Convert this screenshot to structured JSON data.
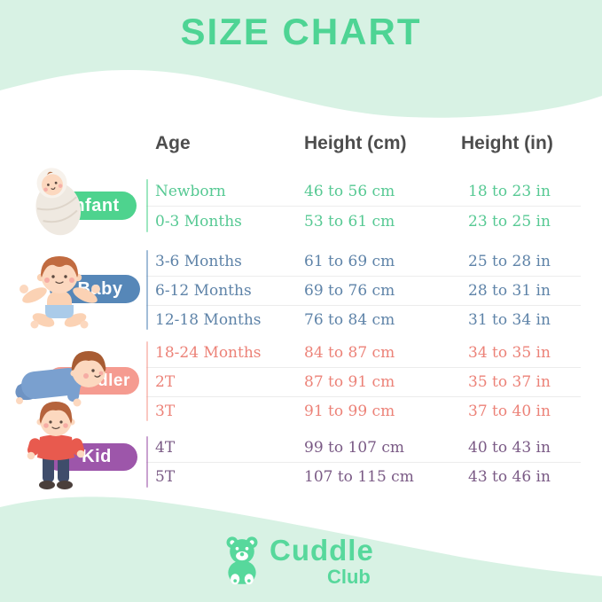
{
  "title": "SIZE CHART",
  "columns": {
    "age": "Age",
    "height_cm": "Height (cm)",
    "height_in": "Height (in)"
  },
  "groups": [
    {
      "label": "Infant",
      "color": "#4ed38e",
      "text_color": "#56c993",
      "illustration": "swaddled-baby",
      "rows": [
        {
          "age": "Newborn",
          "cm": "46 to 56 cm",
          "in": "18 to 23 in"
        },
        {
          "age": "0-3 Months",
          "cm": "53 to 61 cm",
          "in": "23 to 25 in"
        }
      ]
    },
    {
      "label": "Baby",
      "color": "#5687b8",
      "text_color": "#5e83a8",
      "illustration": "sitting-baby-arms-out",
      "rows": [
        {
          "age": "3-6 Months",
          "cm": "61 to 69 cm",
          "in": "25 to 28 in"
        },
        {
          "age": "6-12 Months",
          "cm": "69 to 76 cm",
          "in": "28 to 31 in"
        },
        {
          "age": "12-18 Months",
          "cm": "76 to 84 cm",
          "in": "31 to 34 in"
        }
      ]
    },
    {
      "label": "Toddler",
      "color": "#f59b90",
      "text_color": "#ec8278",
      "illustration": "crawling-toddler",
      "rows": [
        {
          "age": "18-24 Months",
          "cm": "84 to 87 cm",
          "in": "34 to 35 in"
        },
        {
          "age": "2T",
          "cm": "87 to 91 cm",
          "in": "35 to 37 in"
        },
        {
          "age": "3T",
          "cm": "91 to 99 cm",
          "in": "37 to 40 in"
        }
      ]
    },
    {
      "label": "Kid",
      "color": "#9d56aa",
      "text_color": "#7a5a85",
      "illustration": "standing-kid",
      "rows": [
        {
          "age": "4T",
          "cm": "99 to 107 cm",
          "in": "40 to 43 in"
        },
        {
          "age": "5T",
          "cm": "107 to 115 cm",
          "in": "43 to 46 in"
        }
      ]
    }
  ],
  "logo": {
    "brand": "Cuddle",
    "sub": "Club",
    "icon": "teddy-bear",
    "color": "#57d89c"
  },
  "theme": {
    "background_mint": "#d8f2e4",
    "title_green": "#4ed494",
    "header_text": "#4d4d4d",
    "separator": "#ececec"
  },
  "chart_data": {
    "type": "table",
    "title": "SIZE CHART",
    "columns": [
      "Age",
      "Height (cm)",
      "Height (in)"
    ],
    "rows": [
      {
        "group": "Infant",
        "age": "Newborn",
        "height_cm": "46 to 56 cm",
        "height_in": "18 to 23 in"
      },
      {
        "group": "Infant",
        "age": "0-3 Months",
        "height_cm": "53 to 61 cm",
        "height_in": "23 to 25 in"
      },
      {
        "group": "Baby",
        "age": "3-6 Months",
        "height_cm": "61 to 69 cm",
        "height_in": "25 to 28 in"
      },
      {
        "group": "Baby",
        "age": "6-12 Months",
        "height_cm": "69 to 76 cm",
        "height_in": "28 to 31 in"
      },
      {
        "group": "Baby",
        "age": "12-18 Months",
        "height_cm": "76 to 84 cm",
        "height_in": "31 to 34 in"
      },
      {
        "group": "Toddler",
        "age": "18-24 Months",
        "height_cm": "84 to 87 cm",
        "height_in": "34 to 35 in"
      },
      {
        "group": "Toddler",
        "age": "2T",
        "height_cm": "87 to 91 cm",
        "height_in": "35 to 37 in"
      },
      {
        "group": "Toddler",
        "age": "3T",
        "height_cm": "91 to 99 cm",
        "height_in": "37 to 40 in"
      },
      {
        "group": "Kid",
        "age": "4T",
        "height_cm": "99 to 107 cm",
        "height_in": "40 to 43 in"
      },
      {
        "group": "Kid",
        "age": "5T",
        "height_cm": "107 to 115 cm",
        "height_in": "43 to 46 in"
      }
    ]
  }
}
